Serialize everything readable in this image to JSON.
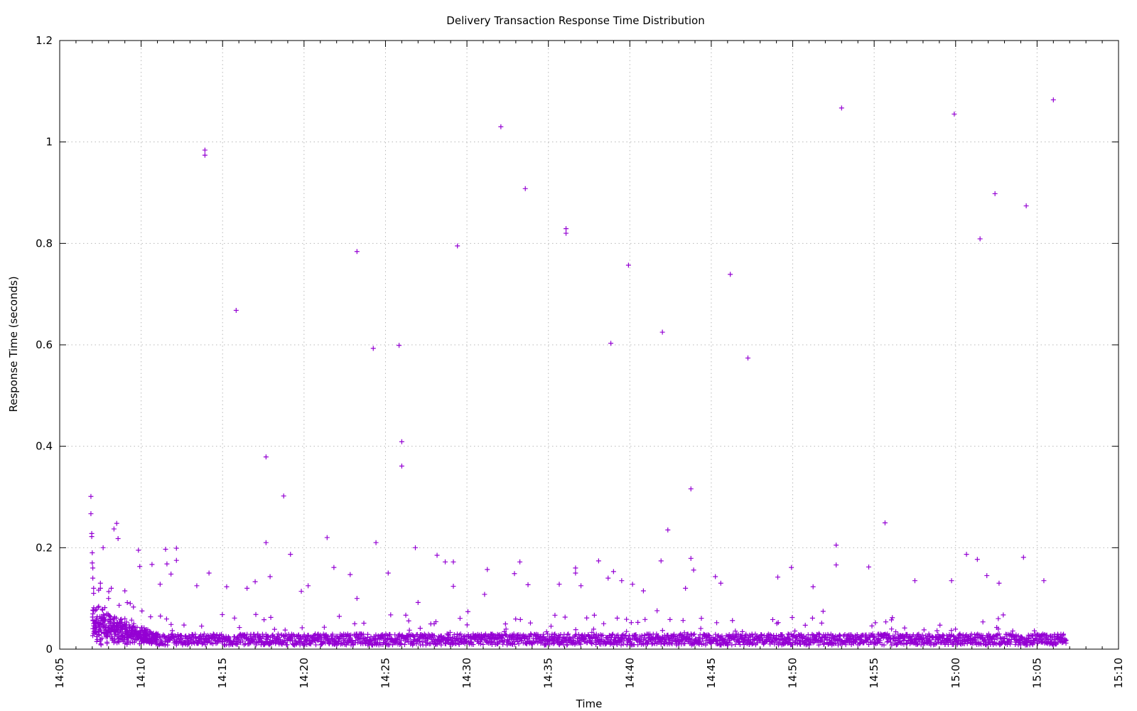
{
  "chart_data": {
    "type": "scatter",
    "title": "Delivery Transaction Response Time Distribution",
    "xlabel": "Time",
    "ylabel": "Response Time (seconds)",
    "marker": "+",
    "color": "#9400d3",
    "grid": true,
    "legend": "none",
    "xlim": [
      "14:05",
      "15:10"
    ],
    "ylim": [
      0,
      1.2
    ],
    "x_ticks": [
      "14:05",
      "14:10",
      "14:15",
      "14:20",
      "14:25",
      "14:30",
      "14:35",
      "14:40",
      "14:45",
      "14:50",
      "14:55",
      "15:00",
      "15:05",
      "15:10"
    ],
    "y_ticks": [
      "0",
      "0.2",
      "0.4",
      "0.6",
      "0.8",
      "1",
      "1.2"
    ],
    "baseline_band": {
      "x_range": [
        "14:07:00",
        "15:06:45"
      ],
      "y_range": [
        0.008,
        0.03
      ]
    },
    "outliers": [
      {
        "x": "14:06:55",
        "y": 0.301
      },
      {
        "x": "14:06:55",
        "y": 0.267
      },
      {
        "x": "14:06:58",
        "y": 0.228
      },
      {
        "x": "14:06:58",
        "y": 0.222
      },
      {
        "x": "14:07:00",
        "y": 0.19
      },
      {
        "x": "14:07:00",
        "y": 0.17
      },
      {
        "x": "14:07:02",
        "y": 0.16
      },
      {
        "x": "14:07:02",
        "y": 0.14
      },
      {
        "x": "14:07:05",
        "y": 0.12
      },
      {
        "x": "14:07:05",
        "y": 0.11
      },
      {
        "x": "14:07:30",
        "y": 0.13
      },
      {
        "x": "14:07:30",
        "y": 0.12
      },
      {
        "x": "14:07:40",
        "y": 0.2
      },
      {
        "x": "14:08:00",
        "y": 0.1
      },
      {
        "x": "14:08:10",
        "y": 0.12
      },
      {
        "x": "14:08:20",
        "y": 0.237
      },
      {
        "x": "14:08:30",
        "y": 0.248
      },
      {
        "x": "14:08:35",
        "y": 0.218
      },
      {
        "x": "14:09:00",
        "y": 0.115
      },
      {
        "x": "14:09:20",
        "y": 0.09
      },
      {
        "x": "14:09:50",
        "y": 0.195
      },
      {
        "x": "14:09:55",
        "y": 0.163
      },
      {
        "x": "14:10:40",
        "y": 0.167
      },
      {
        "x": "14:11:10",
        "y": 0.128
      },
      {
        "x": "14:11:30",
        "y": 0.197
      },
      {
        "x": "14:11:35",
        "y": 0.168
      },
      {
        "x": "14:11:50",
        "y": 0.148
      },
      {
        "x": "14:12:10",
        "y": 0.199
      },
      {
        "x": "14:12:10",
        "y": 0.175
      },
      {
        "x": "14:13:25",
        "y": 0.125
      },
      {
        "x": "14:13:55",
        "y": 0.984
      },
      {
        "x": "14:13:55",
        "y": 0.974
      },
      {
        "x": "14:14:10",
        "y": 0.15
      },
      {
        "x": "14:15:15",
        "y": 0.123
      },
      {
        "x": "14:15:50",
        "y": 0.668
      },
      {
        "x": "14:16:30",
        "y": 0.12
      },
      {
        "x": "14:17:00",
        "y": 0.133
      },
      {
        "x": "14:17:40",
        "y": 0.379
      },
      {
        "x": "14:17:40",
        "y": 0.21
      },
      {
        "x": "14:17:55",
        "y": 0.143
      },
      {
        "x": "14:18:45",
        "y": 0.302
      },
      {
        "x": "14:19:10",
        "y": 0.187
      },
      {
        "x": "14:19:50",
        "y": 0.114
      },
      {
        "x": "14:20:15",
        "y": 0.125
      },
      {
        "x": "14:21:25",
        "y": 0.22
      },
      {
        "x": "14:21:50",
        "y": 0.161
      },
      {
        "x": "14:22:50",
        "y": 0.147
      },
      {
        "x": "14:23:15",
        "y": 0.784
      },
      {
        "x": "14:23:15",
        "y": 0.1
      },
      {
        "x": "14:24:15",
        "y": 0.593
      },
      {
        "x": "14:24:25",
        "y": 0.21
      },
      {
        "x": "14:25:10",
        "y": 0.15
      },
      {
        "x": "14:25:50",
        "y": 0.599
      },
      {
        "x": "14:26:00",
        "y": 0.409
      },
      {
        "x": "14:26:00",
        "y": 0.361
      },
      {
        "x": "14:26:50",
        "y": 0.2
      },
      {
        "x": "14:27:00",
        "y": 0.092
      },
      {
        "x": "14:28:10",
        "y": 0.185
      },
      {
        "x": "14:28:40",
        "y": 0.172
      },
      {
        "x": "14:29:10",
        "y": 0.172
      },
      {
        "x": "14:29:25",
        "y": 0.795
      },
      {
        "x": "14:29:10",
        "y": 0.124
      },
      {
        "x": "14:31:05",
        "y": 0.108
      },
      {
        "x": "14:31:15",
        "y": 0.157
      },
      {
        "x": "14:32:05",
        "y": 1.03
      },
      {
        "x": "14:32:55",
        "y": 0.149
      },
      {
        "x": "14:33:15",
        "y": 0.172
      },
      {
        "x": "14:33:35",
        "y": 0.908
      },
      {
        "x": "14:33:45",
        "y": 0.127
      },
      {
        "x": "14:35:40",
        "y": 0.128
      },
      {
        "x": "14:36:05",
        "y": 0.829
      },
      {
        "x": "14:36:05",
        "y": 0.82
      },
      {
        "x": "14:36:40",
        "y": 0.16
      },
      {
        "x": "14:36:40",
        "y": 0.15
      },
      {
        "x": "14:37:00",
        "y": 0.125
      },
      {
        "x": "14:38:05",
        "y": 0.174
      },
      {
        "x": "14:38:40",
        "y": 0.14
      },
      {
        "x": "14:38:50",
        "y": 0.603
      },
      {
        "x": "14:39:00",
        "y": 0.153
      },
      {
        "x": "14:39:30",
        "y": 0.135
      },
      {
        "x": "14:39:55",
        "y": 0.757
      },
      {
        "x": "14:40:10",
        "y": 0.128
      },
      {
        "x": "14:40:50",
        "y": 0.115
      },
      {
        "x": "14:41:55",
        "y": 0.174
      },
      {
        "x": "14:42:00",
        "y": 0.625
      },
      {
        "x": "14:42:20",
        "y": 0.235
      },
      {
        "x": "14:43:25",
        "y": 0.12
      },
      {
        "x": "14:43:45",
        "y": 0.316
      },
      {
        "x": "14:43:45",
        "y": 0.179
      },
      {
        "x": "14:43:55",
        "y": 0.156
      },
      {
        "x": "14:45:15",
        "y": 0.143
      },
      {
        "x": "14:45:35",
        "y": 0.13
      },
      {
        "x": "14:46:10",
        "y": 0.739
      },
      {
        "x": "14:47:15",
        "y": 0.574
      },
      {
        "x": "14:49:05",
        "y": 0.142
      },
      {
        "x": "14:49:55",
        "y": 0.161
      },
      {
        "x": "14:51:15",
        "y": 0.123
      },
      {
        "x": "14:52:40",
        "y": 0.205
      },
      {
        "x": "14:52:40",
        "y": 0.166
      },
      {
        "x": "14:53:00",
        "y": 1.067
      },
      {
        "x": "14:54:40",
        "y": 0.162
      },
      {
        "x": "14:55:40",
        "y": 0.249
      },
      {
        "x": "14:57:30",
        "y": 0.135
      },
      {
        "x": "14:59:45",
        "y": 0.135
      },
      {
        "x": "14:59:55",
        "y": 1.055
      },
      {
        "x": "15:00:40",
        "y": 0.187
      },
      {
        "x": "15:01:20",
        "y": 0.177
      },
      {
        "x": "15:01:30",
        "y": 0.809
      },
      {
        "x": "15:01:55",
        "y": 0.145
      },
      {
        "x": "15:02:25",
        "y": 0.898
      },
      {
        "x": "15:02:40",
        "y": 0.13
      },
      {
        "x": "15:04:10",
        "y": 0.181
      },
      {
        "x": "15:04:20",
        "y": 0.874
      },
      {
        "x": "15:05:25",
        "y": 0.135
      },
      {
        "x": "15:06:00",
        "y": 1.083
      }
    ]
  }
}
